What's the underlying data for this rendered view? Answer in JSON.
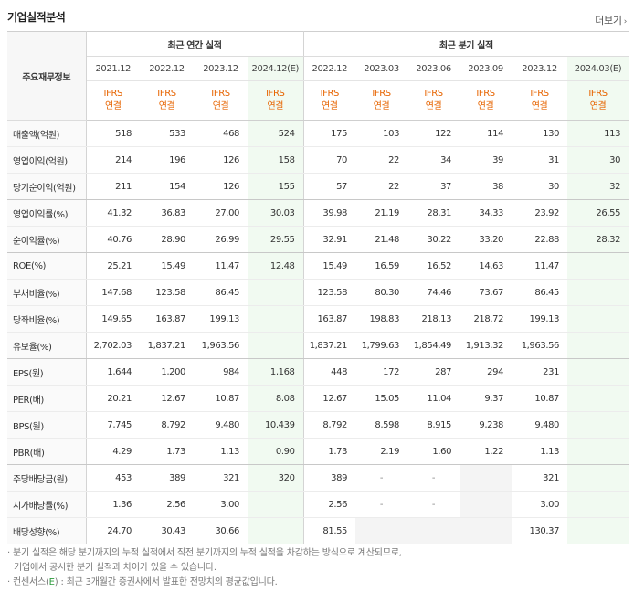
{
  "title": "기업실적분석",
  "more_label": "더보기",
  "header": {
    "row_label": "주요재무정보",
    "annual_group": "최근 연간 실적",
    "quarter_group": "최근 분기 실적",
    "annual_periods": [
      "2021.12",
      "2022.12",
      "2023.12",
      "2024.12(E)"
    ],
    "quarter_periods": [
      "2022.12",
      "2023.03",
      "2023.06",
      "2023.09",
      "2023.12",
      "2024.03(E)"
    ],
    "ifrs_top": "IFRS",
    "ifrs_bottom": "연결"
  },
  "rows": [
    {
      "label": "매출액(억원)",
      "values": [
        "518",
        "533",
        "468",
        "524",
        "175",
        "103",
        "122",
        "114",
        "130",
        "113"
      ]
    },
    {
      "label": "영업이익(억원)",
      "values": [
        "214",
        "196",
        "126",
        "158",
        "70",
        "22",
        "34",
        "39",
        "31",
        "30"
      ]
    },
    {
      "label": "당기순이익(억원)",
      "values": [
        "211",
        "154",
        "126",
        "155",
        "57",
        "22",
        "37",
        "38",
        "30",
        "32"
      ]
    },
    {
      "label": "영업이익률(%)",
      "values": [
        "41.32",
        "36.83",
        "27.00",
        "30.03",
        "39.98",
        "21.19",
        "28.31",
        "34.33",
        "23.92",
        "26.55"
      ]
    },
    {
      "label": "순이익률(%)",
      "values": [
        "40.76",
        "28.90",
        "26.99",
        "29.55",
        "32.91",
        "21.48",
        "30.22",
        "33.20",
        "22.88",
        "28.32"
      ]
    },
    {
      "label": "ROE(%)",
      "values": [
        "25.21",
        "15.49",
        "11.47",
        "12.48",
        "15.49",
        "16.59",
        "16.52",
        "14.63",
        "11.47",
        ""
      ]
    },
    {
      "label": "부채비율(%)",
      "values": [
        "147.68",
        "123.58",
        "86.45",
        "",
        "123.58",
        "80.30",
        "74.46",
        "73.67",
        "86.45",
        ""
      ]
    },
    {
      "label": "당좌비율(%)",
      "values": [
        "149.65",
        "163.87",
        "199.13",
        "",
        "163.87",
        "198.83",
        "218.13",
        "218.72",
        "199.13",
        ""
      ]
    },
    {
      "label": "유보율(%)",
      "values": [
        "2,702.03",
        "1,837.21",
        "1,963.56",
        "",
        "1,837.21",
        "1,799.63",
        "1,854.49",
        "1,913.32",
        "1,963.56",
        ""
      ]
    },
    {
      "label": "EPS(원)",
      "values": [
        "1,644",
        "1,200",
        "984",
        "1,168",
        "448",
        "172",
        "287",
        "294",
        "231",
        ""
      ]
    },
    {
      "label": "PER(배)",
      "values": [
        "20.21",
        "12.67",
        "10.87",
        "8.08",
        "12.67",
        "15.05",
        "11.04",
        "9.37",
        "10.87",
        ""
      ]
    },
    {
      "label": "BPS(원)",
      "values": [
        "7,745",
        "8,792",
        "9,480",
        "10,439",
        "8,792",
        "8,598",
        "8,915",
        "9,238",
        "9,480",
        ""
      ]
    },
    {
      "label": "PBR(배)",
      "values": [
        "4.29",
        "1.73",
        "1.13",
        "0.90",
        "1.73",
        "2.19",
        "1.60",
        "1.22",
        "1.13",
        ""
      ]
    },
    {
      "label": "주당배당금(원)",
      "values": [
        "453",
        "389",
        "321",
        "320",
        "389",
        "-",
        "-",
        "",
        "321",
        ""
      ]
    },
    {
      "label": "시가배당률(%)",
      "values": [
        "1.36",
        "2.56",
        "3.00",
        "",
        "2.56",
        "-",
        "-",
        "",
        "3.00",
        ""
      ]
    },
    {
      "label": "배당성향(%)",
      "values": [
        "24.70",
        "30.43",
        "30.66",
        "",
        "81.55",
        "",
        "",
        "",
        "130.37",
        ""
      ]
    }
  ],
  "notes": {
    "line1": "분기 실적은 해당 분기까지의 누적 실적에서 직전 분기까지의 누적 실적을 차감하는 방식으로 계산되므로,",
    "line2": "기업에서 공시한 분기 실적과 차이가 있을 수 있습니다.",
    "line3_prefix": "컨센서스(",
    "line3_e": "E",
    "line3_suffix": ") : 최근 3개월간 증권사에서 발표한 전망치의 평균값입니다."
  },
  "colors": {
    "ifrs": "#e76400",
    "estimate_bg": "#f1faf1",
    "consensus_e": "#2b9a3b"
  }
}
